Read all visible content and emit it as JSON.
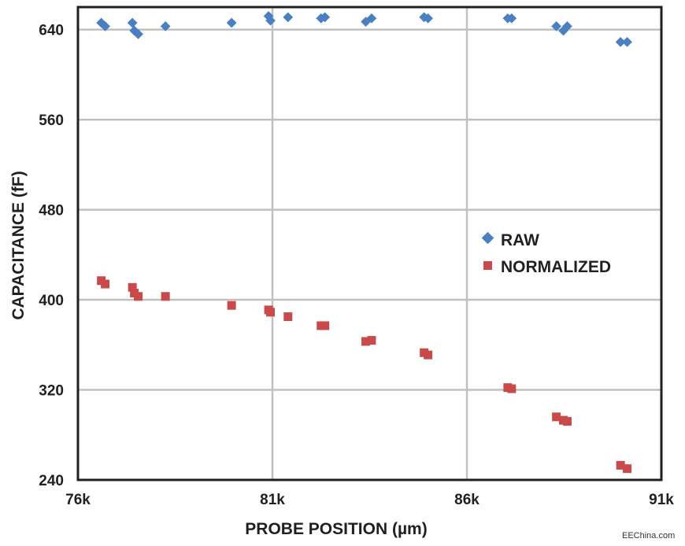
{
  "chart_data": {
    "type": "scatter",
    "xlabel": "PROBE POSITION (µm)",
    "ylabel": "CAPACITANCE (fF)",
    "xlim": [
      76000,
      91000
    ],
    "ylim": [
      240,
      660
    ],
    "x_ticks": [
      76000,
      81000,
      86000,
      91000
    ],
    "x_tick_labels": [
      "76k",
      "81k",
      "86k",
      "91k"
    ],
    "y_ticks": [
      240,
      320,
      400,
      480,
      560,
      640
    ],
    "y_tick_labels": [
      "240",
      "320",
      "400",
      "480",
      "560",
      "640"
    ],
    "grid": true,
    "legend_position": "right-middle",
    "series": [
      {
        "name": "RAW",
        "marker": "diamond",
        "color": "#4a7fc1",
        "x": [
          76600,
          76700,
          77400,
          77450,
          77550,
          78250,
          79950,
          80900,
          80950,
          81400,
          82250,
          82350,
          83400,
          83550,
          84900,
          85000,
          87050,
          87150,
          88300,
          88480,
          88580,
          89950,
          90120
        ],
        "y": [
          646,
          643,
          646,
          639,
          636,
          643,
          646,
          652,
          648,
          651,
          650,
          651,
          647,
          650,
          651,
          650,
          650,
          650,
          643,
          639,
          643,
          629,
          629
        ]
      },
      {
        "name": "NORMALIZED",
        "color": "#c94a4a",
        "marker": "square",
        "x": [
          76600,
          76700,
          77400,
          77450,
          77550,
          78250,
          79950,
          80900,
          80950,
          81400,
          82250,
          82350,
          83400,
          83550,
          84900,
          85000,
          87050,
          87150,
          88300,
          88480,
          88580,
          89950,
          90120
        ],
        "y": [
          417,
          414,
          411,
          406,
          403,
          403,
          395,
          391,
          389,
          385,
          377,
          377,
          363,
          364,
          353,
          351,
          322,
          321,
          296,
          293,
          292,
          253,
          250
        ]
      }
    ]
  },
  "watermark": "EEChina.com",
  "style": {
    "grid_color": "#c0c0c0",
    "frame_color": "#231f20"
  }
}
